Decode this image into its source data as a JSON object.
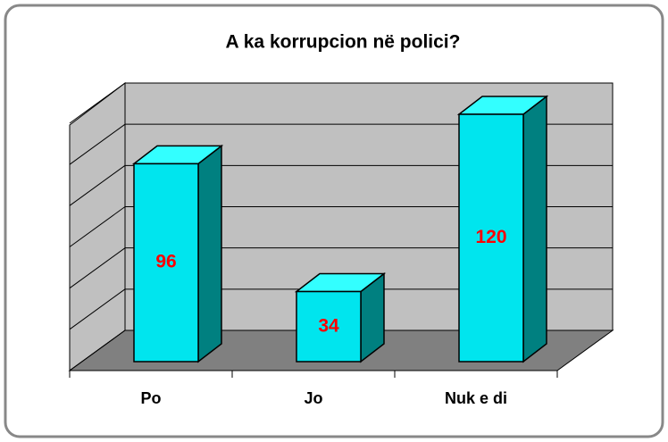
{
  "chart_data": {
    "type": "bar",
    "title": "A ka korrupcion në polici?",
    "categories": [
      "Po",
      "Jo",
      "Nuk e di"
    ],
    "values": [
      96,
      34,
      120
    ],
    "color": "#00e5ee",
    "ylim": [
      0,
      120
    ],
    "yticks": [
      0,
      20,
      40,
      60,
      80,
      100,
      120
    ],
    "grid": true
  }
}
